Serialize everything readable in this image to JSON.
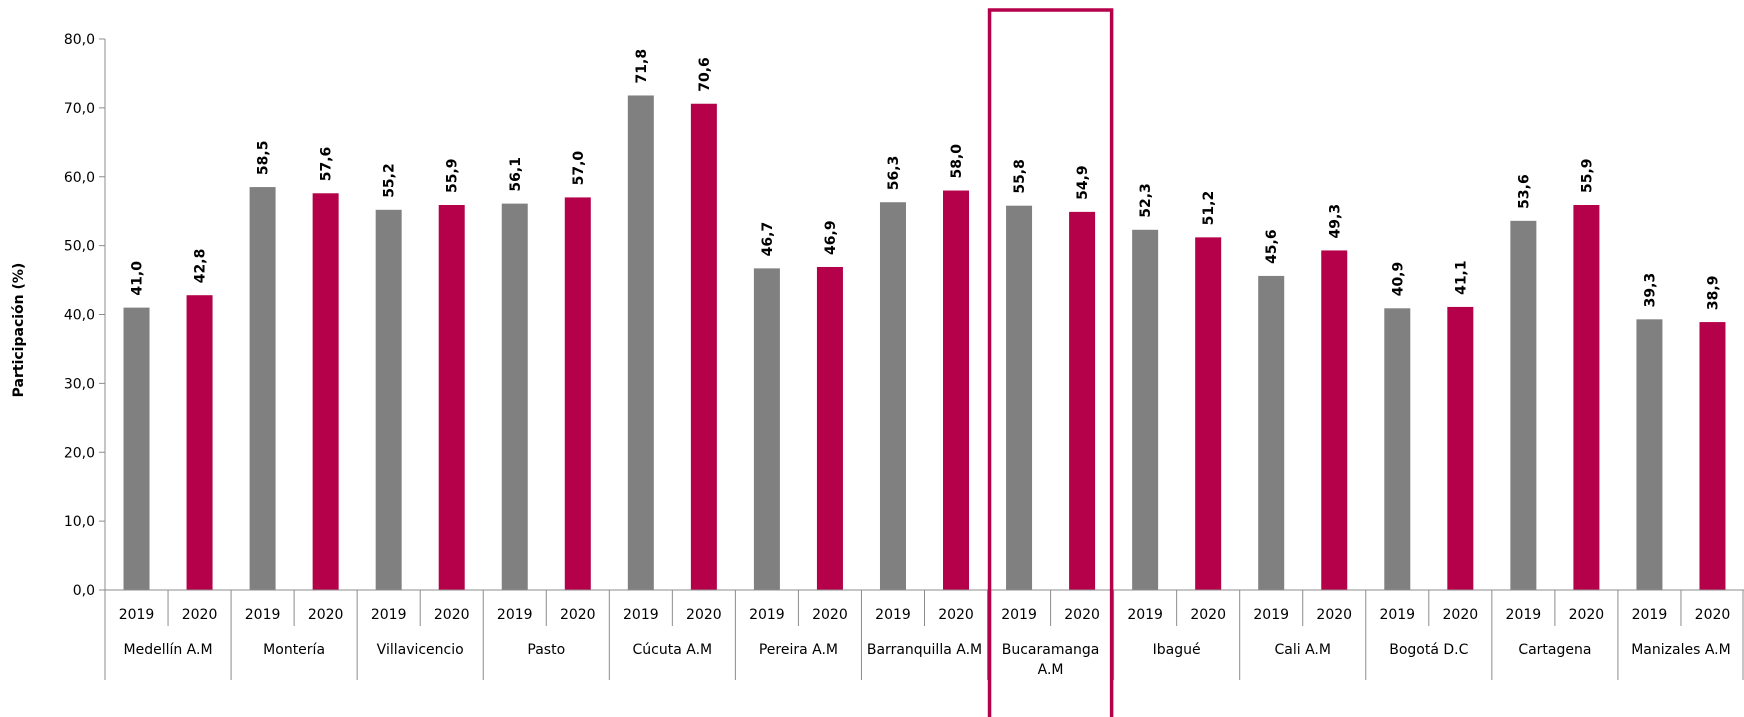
{
  "chart_data": {
    "type": "bar",
    "ylabel": "Participación (%)",
    "ylim": [
      0,
      80
    ],
    "y_ticks": [
      "0,0",
      "10,0",
      "20,0",
      "30,0",
      "40,0",
      "50,0",
      "60,0",
      "70,0",
      "80,0"
    ],
    "grid": false,
    "colors": {
      "2019": "#808080",
      "2020": "#b5004a",
      "highlight": "#b5004a"
    },
    "highlight_category": "Bucaramanga A.M",
    "categories": [
      {
        "city": [
          "Medellín A.M"
        ],
        "values": [
          {
            "year": "2019",
            "value": 41.0,
            "label": "41,0"
          },
          {
            "year": "2020",
            "value": 42.8,
            "label": "42,8"
          }
        ]
      },
      {
        "city": [
          "Montería"
        ],
        "values": [
          {
            "year": "2019",
            "value": 58.5,
            "label": "58,5"
          },
          {
            "year": "2020",
            "value": 57.6,
            "label": "57,6"
          }
        ]
      },
      {
        "city": [
          "Villavicencio"
        ],
        "values": [
          {
            "year": "2019",
            "value": 55.2,
            "label": "55,2"
          },
          {
            "year": "2020",
            "value": 55.9,
            "label": "55,9"
          }
        ]
      },
      {
        "city": [
          "Pasto"
        ],
        "values": [
          {
            "year": "2019",
            "value": 56.1,
            "label": "56,1"
          },
          {
            "year": "2020",
            "value": 57.0,
            "label": "57,0"
          }
        ]
      },
      {
        "city": [
          "Cúcuta A.M"
        ],
        "values": [
          {
            "year": "2019",
            "value": 71.8,
            "label": "71,8"
          },
          {
            "year": "2020",
            "value": 70.6,
            "label": "70,6"
          }
        ]
      },
      {
        "city": [
          "Pereira A.M"
        ],
        "values": [
          {
            "year": "2019",
            "value": 46.7,
            "label": "46,7"
          },
          {
            "year": "2020",
            "value": 46.9,
            "label": "46,9"
          }
        ]
      },
      {
        "city": [
          "Barranquilla A.M"
        ],
        "values": [
          {
            "year": "2019",
            "value": 56.3,
            "label": "56,3"
          },
          {
            "year": "2020",
            "value": 58.0,
            "label": "58,0"
          }
        ]
      },
      {
        "city": [
          "Bucaramanga",
          "A.M"
        ],
        "values": [
          {
            "year": "2019",
            "value": 55.8,
            "label": "55,8"
          },
          {
            "year": "2020",
            "value": 54.9,
            "label": "54,9"
          }
        ]
      },
      {
        "city": [
          "Ibagué"
        ],
        "values": [
          {
            "year": "2019",
            "value": 52.3,
            "label": "52,3"
          },
          {
            "year": "2020",
            "value": 51.2,
            "label": "51,2"
          }
        ]
      },
      {
        "city": [
          "Cali A.M"
        ],
        "values": [
          {
            "year": "2019",
            "value": 45.6,
            "label": "45,6"
          },
          {
            "year": "2020",
            "value": 49.3,
            "label": "49,3"
          }
        ]
      },
      {
        "city": [
          "Bogotá D.C"
        ],
        "values": [
          {
            "year": "2019",
            "value": 40.9,
            "label": "40,9"
          },
          {
            "year": "2020",
            "value": 41.1,
            "label": "41,1"
          }
        ]
      },
      {
        "city": [
          "Cartagena"
        ],
        "values": [
          {
            "year": "2019",
            "value": 53.6,
            "label": "53,6"
          },
          {
            "year": "2020",
            "value": 55.9,
            "label": "55,9"
          }
        ]
      },
      {
        "city": [
          "Manizales A.M"
        ],
        "values": [
          {
            "year": "2019",
            "value": 39.3,
            "label": "39,3"
          },
          {
            "year": "2020",
            "value": 38.9,
            "label": "38,9"
          }
        ]
      }
    ]
  }
}
